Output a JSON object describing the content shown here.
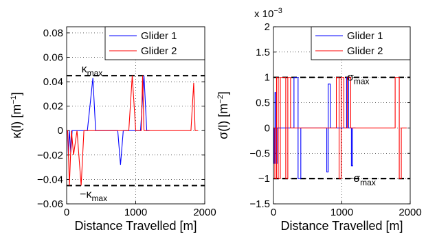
{
  "chart_data": [
    {
      "type": "line",
      "xlabel": "Distance Travelled [m]",
      "ylabel": {
        "base": "κ(l) [m",
        "sup": "−1",
        "end": "]"
      },
      "xlim": [
        0,
        2000
      ],
      "ylim": [
        -0.06,
        0.085
      ],
      "xticks": [
        0,
        1000,
        2000
      ],
      "xtick_labels": [
        "0",
        "1000",
        "2000"
      ],
      "yticks": [
        -0.06,
        -0.04,
        -0.02,
        0,
        0.02,
        0.04,
        0.06,
        0.08
      ],
      "ytick_labels": [
        "−0.06",
        "−0.04",
        "−0.02",
        "0",
        "0.02",
        "0.04",
        "0.06",
        "0.08"
      ],
      "grid": true,
      "legend": "top-right",
      "limit_lines": [
        0.045,
        -0.045
      ],
      "annotations": [
        {
          "base": "κ",
          "sub": "max",
          "prefix": "",
          "x": 215,
          "y": 0.0505
        },
        {
          "base": "κ",
          "sub": "max",
          "prefix": "−",
          "x": 190,
          "y": -0.052
        }
      ],
      "series": [
        {
          "name": "Glider 1",
          "color": "#0000ff",
          "x": [
            0,
            12,
            25,
            40,
            60,
            80,
            100,
            250,
            290,
            300,
            380,
            420,
            460,
            500,
            740,
            780,
            820,
            1070,
            1120,
            1160,
            1200
          ],
          "y": [
            0,
            0,
            -0.02,
            0,
            -0.018,
            0,
            0,
            0,
            0,
            0,
            0.043,
            0,
            0,
            0,
            0,
            -0.028,
            0,
            0,
            0.045,
            0,
            0
          ]
        },
        {
          "name": "Glider 2",
          "color": "#ff0000",
          "x": [
            0,
            15,
            40,
            70,
            100,
            150,
            210,
            250,
            300,
            340,
            380,
            900,
            950,
            1000,
            1080,
            1100,
            1120,
            1750,
            1800,
            1840,
            1860,
            1880,
            1900
          ],
          "y": [
            0,
            0,
            -0.045,
            0,
            -0.02,
            0,
            -0.045,
            0,
            0,
            0,
            0,
            0,
            0.045,
            0,
            0,
            0.045,
            0,
            0,
            0,
            0.039,
            0,
            0,
            0
          ]
        }
      ]
    },
    {
      "type": "line",
      "xlabel": "Distance Travelled [m]",
      "ylabel": {
        "base": "σ(l) [m",
        "sup": "−2",
        "end": "]"
      },
      "scale_label": {
        "base": "x 10",
        "sup": "−3"
      },
      "xlim": [
        0,
        2000
      ],
      "ylim": [
        -1.5,
        2
      ],
      "xticks": [
        0,
        1000,
        2000
      ],
      "xtick_labels": [
        "0",
        "1000",
        "2000"
      ],
      "yticks": [
        -1.5,
        -1,
        -0.5,
        0,
        0.5,
        1,
        1.5,
        2
      ],
      "ytick_labels": [
        "−1.5",
        "−1",
        "−0.5",
        "0",
        "0.5",
        "1",
        "1.5",
        "2"
      ],
      "grid": true,
      "legend": "top-right",
      "limit_lines": [
        1,
        -1
      ],
      "annotations": [
        {
          "base": "σ",
          "sub": "max",
          "prefix": "",
          "x": 1075,
          "y": 1.0
        },
        {
          "base": "σ",
          "sub": "max",
          "prefix": "−",
          "x": 1075,
          "y": -1.0
        }
      ],
      "series": [
        {
          "name": "Glider 1",
          "color": "#0000ff",
          "x": [
            0,
            10,
            10,
            22,
            22,
            38,
            38,
            52,
            52,
            70,
            70,
            300,
            300,
            360,
            360,
            400,
            400,
            460,
            460,
            780,
            780,
            800,
            800,
            830,
            830,
            1070,
            1070,
            1100,
            1100,
            1140,
            1140,
            1160,
            1160,
            1200
          ],
          "y": [
            0,
            0,
            -0.7,
            -0.7,
            0.7,
            0.7,
            -0.7,
            -0.7,
            0,
            0,
            0,
            0,
            1,
            1,
            -1,
            -1,
            0,
            0,
            0,
            0,
            -0.87,
            -0.87,
            0.87,
            0.87,
            0,
            0,
            1,
            1,
            0,
            0,
            -0.75,
            -0.75,
            0,
            0
          ]
        },
        {
          "name": "Glider 2",
          "color": "#ff0000",
          "x": [
            0,
            20,
            20,
            45,
            45,
            70,
            70,
            100,
            100,
            180,
            180,
            210,
            210,
            250,
            250,
            920,
            920,
            960,
            960,
            990,
            990,
            1030,
            1030,
            1080,
            1080,
            1130,
            1130,
            1780,
            1780,
            1840,
            1840,
            1870,
            1870,
            1900,
            1900,
            1950
          ],
          "y": [
            0,
            0,
            -1,
            -1,
            1,
            1,
            -1,
            -1,
            1,
            1,
            -1,
            -1,
            1,
            1,
            0,
            0,
            1,
            1,
            -1,
            -1,
            1,
            1,
            0,
            0,
            1,
            1,
            0,
            0,
            1,
            1,
            -1,
            -1,
            0,
            0,
            0,
            0
          ]
        }
      ]
    }
  ]
}
